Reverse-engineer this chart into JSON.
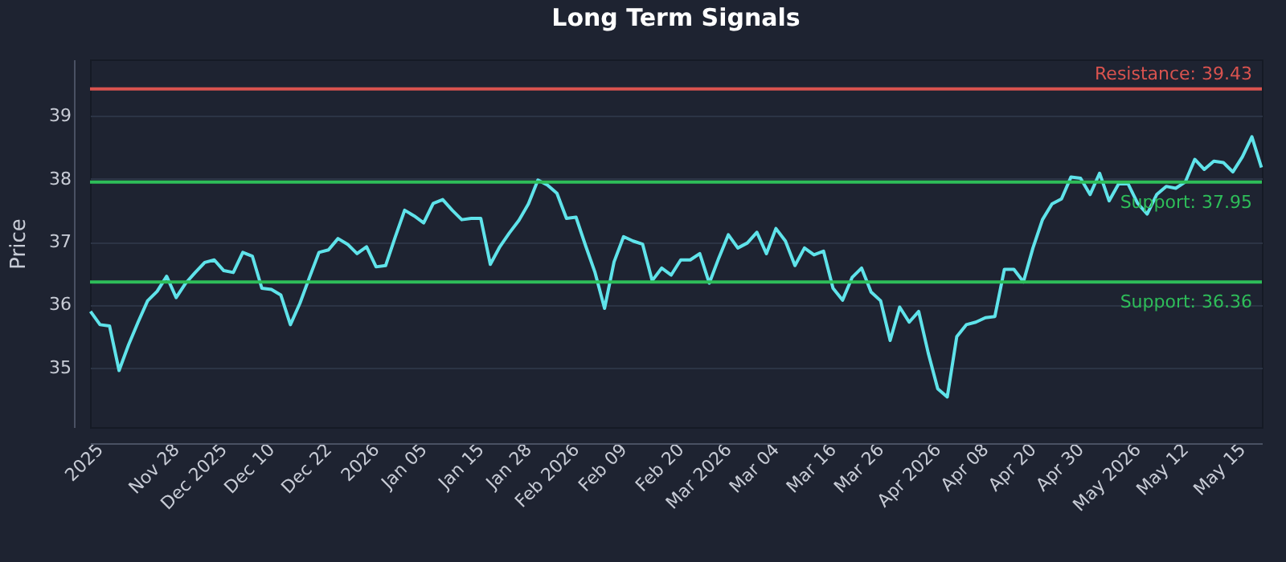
{
  "chart_data": {
    "type": "line",
    "title": "Long Term Signals",
    "ylabel": "Price",
    "categories": [
      null,
      "2025",
      null,
      null,
      null,
      null,
      null,
      null,
      null,
      "Nov 28",
      null,
      null,
      null,
      null,
      "Dec 2025",
      null,
      null,
      null,
      null,
      "Dec 10",
      null,
      null,
      null,
      null,
      null,
      "Dec 22",
      null,
      null,
      null,
      null,
      "2026",
      null,
      null,
      null,
      null,
      "Jan 05",
      null,
      null,
      null,
      null,
      null,
      "Jan 15",
      null,
      null,
      null,
      null,
      "Jan 28",
      null,
      null,
      null,
      null,
      "Feb 2026",
      null,
      null,
      null,
      null,
      "Feb 09",
      null,
      null,
      null,
      null,
      null,
      "Feb 20",
      null,
      null,
      null,
      null,
      "Mar 2026",
      null,
      null,
      null,
      null,
      "Mar 04",
      null,
      null,
      null,
      null,
      null,
      "Mar 16",
      null,
      null,
      null,
      null,
      "Mar 26",
      null,
      null,
      null,
      null,
      null,
      "Apr 2026",
      null,
      null,
      null,
      null,
      "Apr 08",
      null,
      null,
      null,
      null,
      "Apr 20",
      null,
      null,
      null,
      null,
      "Apr 30",
      null,
      null,
      null,
      null,
      null,
      "May 2026",
      null,
      null,
      null,
      null,
      "May 12",
      null,
      null,
      null,
      null,
      null,
      "May 15",
      null,
      null
    ],
    "series": [
      {
        "color": "#5fe3ea",
        "values": [
          35.89,
          35.68,
          35.66,
          34.95,
          35.36,
          35.72,
          36.06,
          36.21,
          36.45,
          36.11,
          36.34,
          36.51,
          36.67,
          36.71,
          36.54,
          36.51,
          36.83,
          36.77,
          36.26,
          36.24,
          36.15,
          35.68,
          36.02,
          36.43,
          36.83,
          36.87,
          37.05,
          36.96,
          36.81,
          36.92,
          36.6,
          36.62,
          37.07,
          37.5,
          37.41,
          37.3,
          37.61,
          37.67,
          37.5,
          37.35,
          37.37,
          37.37,
          36.64,
          36.92,
          37.14,
          37.34,
          37.6,
          37.98,
          37.9,
          37.77,
          37.37,
          37.39,
          36.94,
          36.51,
          35.94,
          36.68,
          37.08,
          37.01,
          36.96,
          36.38,
          36.58,
          36.47,
          36.71,
          36.71,
          36.81,
          36.34,
          36.74,
          37.11,
          36.9,
          36.98,
          37.15,
          36.81,
          37.21,
          37.01,
          36.62,
          36.9,
          36.79,
          36.85,
          36.26,
          36.07,
          36.43,
          36.58,
          36.2,
          36.06,
          35.43,
          35.96,
          35.72,
          35.89,
          35.23,
          34.66,
          34.53,
          35.49,
          35.68,
          35.72,
          35.79,
          35.81,
          36.56,
          36.56,
          36.36,
          36.9,
          37.35,
          37.6,
          37.68,
          38.03,
          38.01,
          37.75,
          38.09,
          37.65,
          37.92,
          37.92,
          37.61,
          37.44,
          37.75,
          37.88,
          37.85,
          37.95,
          38.31,
          38.15,
          38.28,
          38.26,
          38.11,
          38.35,
          38.67,
          38.18
        ]
      }
    ],
    "ylim": [
      34.05,
      39.9
    ],
    "yticks": [
      35,
      36,
      37,
      38,
      39
    ],
    "grid": "y",
    "ref_lines": [
      {
        "axis": "y",
        "value": 39.43,
        "label": "Resistance: 39.43",
        "color": "#d9534f"
      },
      {
        "axis": "y",
        "value": 37.95,
        "label": "Support: 37.95",
        "color": "#2ebd59"
      },
      {
        "axis": "y",
        "value": 36.36,
        "label": "Support: 36.36",
        "color": "#2ebd59"
      }
    ]
  }
}
